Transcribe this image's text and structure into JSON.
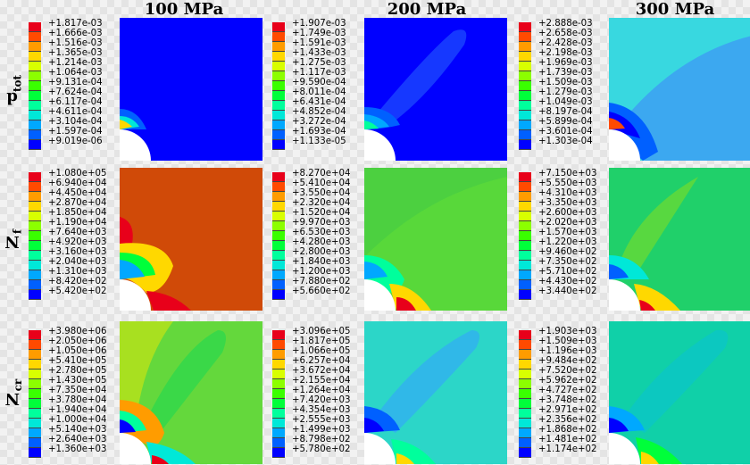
{
  "columns": [
    "100 MPa",
    "200 MPa",
    "300 MPa"
  ],
  "rows": [
    {
      "label": "d",
      "sub": "tot"
    },
    {
      "label": "N",
      "sub": "f"
    },
    {
      "label": "N",
      "sub": "cr"
    }
  ],
  "legend_colors": [
    "#e8001a",
    "#ff4a00",
    "#ff9c00",
    "#ffd800",
    "#d8ff00",
    "#8cff00",
    "#3aff00",
    "#00ff3a",
    "#00ff9c",
    "#00e8d8",
    "#00a8ff",
    "#0060ff",
    "#0000ff"
  ],
  "legends": [
    [
      "+1.817e-03",
      "+1.666e-03",
      "+1.516e-03",
      "+1.365e-03",
      "+1.214e-03",
      "+1.064e-03",
      "+9.131e-04",
      "+7.624e-04",
      "+6.117e-04",
      "+4.611e-04",
      "+3.104e-04",
      "+1.597e-04",
      "+9.019e-06"
    ],
    [
      "+1.907e-03",
      "+1.749e-03",
      "+1.591e-03",
      "+1.433e-03",
      "+1.275e-03",
      "+1.117e-03",
      "+9.590e-04",
      "+8.011e-04",
      "+6.431e-04",
      "+4.852e-04",
      "+3.272e-04",
      "+1.693e-04",
      "+1.133e-05"
    ],
    [
      "+2.888e-03",
      "+2.658e-03",
      "+2.428e-03",
      "+2.198e-03",
      "+1.969e-03",
      "+1.739e-03",
      "+1.509e-03",
      "+1.279e-03",
      "+1.049e-03",
      "+8.197e-04",
      "+5.899e-04",
      "+3.601e-04",
      "+1.303e-04"
    ],
    [
      "+1.080e+05",
      "+6.940e+04",
      "+4.450e+04",
      "+2.870e+04",
      "+1.850e+04",
      "+1.190e+04",
      "+7.640e+03",
      "+4.920e+03",
      "+3.160e+03",
      "+2.040e+03",
      "+1.310e+03",
      "+8.420e+02",
      "+5.420e+02"
    ],
    [
      "+8.270e+04",
      "+5.410e+04",
      "+3.550e+04",
      "+2.320e+04",
      "+1.520e+04",
      "+9.970e+03",
      "+6.530e+03",
      "+4.280e+03",
      "+2.800e+03",
      "+1.840e+03",
      "+1.200e+03",
      "+7.880e+02",
      "+5.660e+02"
    ],
    [
      "+7.150e+03",
      "+5.550e+03",
      "+4.310e+03",
      "+3.350e+03",
      "+2.600e+03",
      "+2.020e+03",
      "+1.570e+03",
      "+1.220e+03",
      "+9.460e+02",
      "+7.350e+02",
      "+5.710e+02",
      "+4.430e+02",
      "+3.440e+02"
    ],
    [
      "+3.980e+06",
      "+2.050e+06",
      "+1.050e+06",
      "+5.410e+05",
      "+2.780e+05",
      "+1.430e+05",
      "+7.350e+04",
      "+3.780e+04",
      "+1.940e+04",
      "+1.000e+04",
      "+5.140e+03",
      "+2.640e+03",
      "+1.360e+03"
    ],
    [
      "+3.096e+05",
      "+1.817e+05",
      "+1.066e+05",
      "+6.257e+04",
      "+3.672e+04",
      "+2.155e+04",
      "+1.264e+04",
      "+7.420e+03",
      "+4.354e+03",
      "+2.555e+03",
      "+1.499e+03",
      "+8.798e+02",
      "+5.780e+02"
    ],
    [
      "+1.903e+03",
      "+1.509e+03",
      "+1.196e+03",
      "+9.484e+02",
      "+7.520e+02",
      "+5.962e+02",
      "+4.727e+02",
      "+3.748e+02",
      "+2.971e+02",
      "+2.356e+02",
      "+1.868e+02",
      "+1.481e+02",
      "+1.174e+02"
    ]
  ]
}
